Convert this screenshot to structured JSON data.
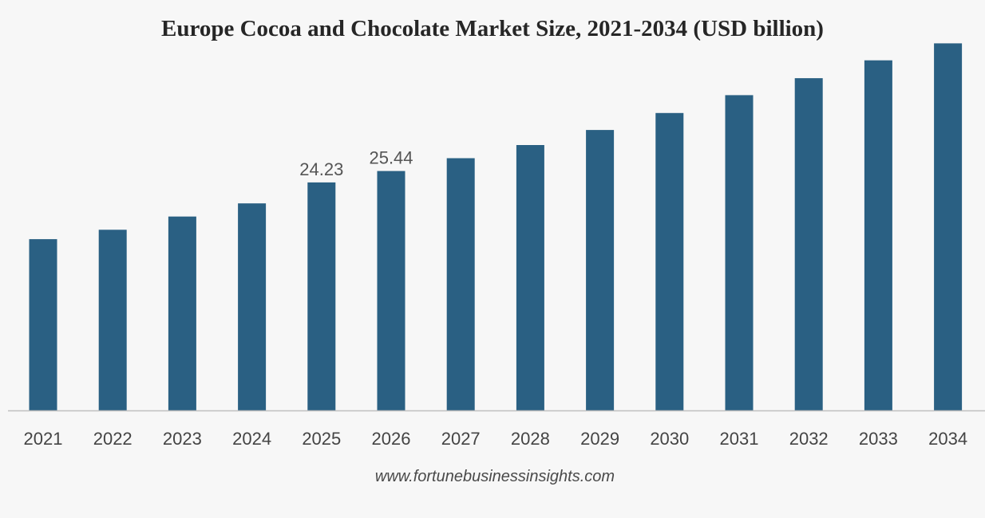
{
  "source": "www.fortunebusinessinsights.com",
  "colors": {
    "bar": "#2a6083",
    "axis": "#bfbfbf",
    "background": "#f7f7f7"
  },
  "chart_data": {
    "type": "bar",
    "title": "Europe Cocoa and Chocolate Market Size, 2021-2034 (USD billion)",
    "xlabel": "",
    "ylabel": "",
    "categories": [
      "2021",
      "2022",
      "2023",
      "2024",
      "2025",
      "2026",
      "2027",
      "2028",
      "2029",
      "2030",
      "2031",
      "2032",
      "2033",
      "2034"
    ],
    "values": [
      18.2,
      19.2,
      20.6,
      22.0,
      24.23,
      25.44,
      26.8,
      28.2,
      29.8,
      31.6,
      33.5,
      35.3,
      37.2,
      39.0
    ],
    "data_labels": {
      "2025": "24.23",
      "2026": "25.44"
    },
    "ylim": [
      0,
      42
    ],
    "grid": false,
    "legend": "none"
  }
}
